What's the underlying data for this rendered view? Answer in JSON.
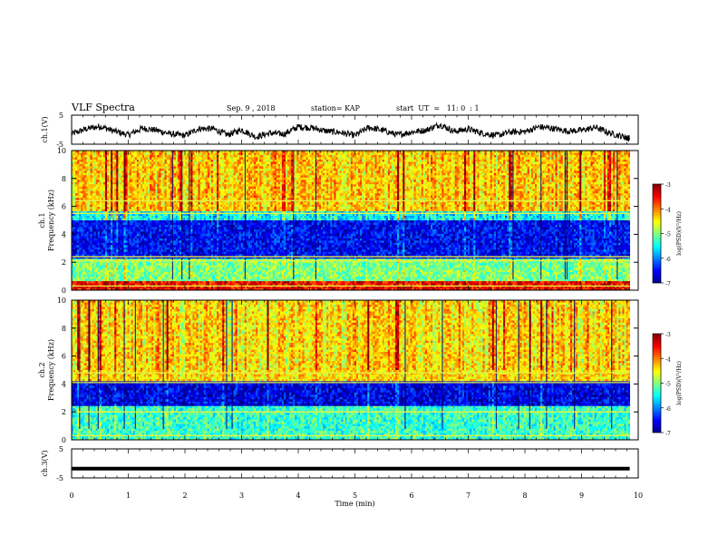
{
  "header": {
    "title": "VLF Spectra",
    "date": "Sep. 9 , 2018",
    "station": "station= KAP",
    "start": "start  UT  =   11: 0  : 1"
  },
  "chart_data": [
    {
      "type": "line",
      "panel": "ch1-waveform",
      "ylabel": "ch.1(V)",
      "xlim": [
        0,
        10
      ],
      "ylim": [
        -5,
        5
      ],
      "y_ticks": [
        "5",
        "-5"
      ],
      "x": [
        0,
        0.25,
        0.5,
        0.75,
        1,
        1.25,
        1.5,
        1.75,
        2,
        2.25,
        2.5,
        2.75,
        3,
        3.25,
        3.5,
        3.75,
        4,
        4.25,
        4.5,
        4.75,
        5,
        5.25,
        5.5,
        5.75,
        6,
        6.25,
        6.5,
        6.75,
        7,
        7.25,
        7.5,
        7.75,
        8,
        8.25,
        8.5,
        8.75,
        9,
        9.25,
        9.5,
        9.75,
        9.85
      ],
      "values": [
        -1.5,
        0.2,
        1.2,
        -0.5,
        -1.8,
        0.5,
        -0.2,
        -1.5,
        -2.0,
        0.4,
        0.3,
        -1.8,
        0.0,
        -2.5,
        -1.2,
        -1.5,
        1.0,
        0.6,
        -0.5,
        -1.0,
        -2.0,
        0.8,
        -0.3,
        -1.8,
        -0.8,
        -0.2,
        1.8,
        -0.6,
        0.2,
        -1.2,
        -2.0,
        -0.8,
        -0.7,
        1.0,
        0.4,
        -0.5,
        -0.2,
        0.8,
        -1.2,
        -2.5,
        -3.0
      ]
    },
    {
      "type": "heatmap",
      "panel": "ch1-spectrogram",
      "ylabel": "ch.1\nFrequency (kHz)",
      "xlim": [
        0,
        10
      ],
      "ylim": [
        0,
        10
      ],
      "y_ticks": [
        "0",
        "2",
        "4",
        "6",
        "8",
        "10"
      ],
      "colorbar": {
        "label": "log(PSD)(V²/Hz)",
        "range": [
          -7,
          -3
        ],
        "ticks": [
          "-3",
          "-4",
          "-5",
          "-6",
          "-7"
        ]
      },
      "bands": [
        {
          "f_range": [
            0,
            0.6
          ],
          "level": -3.5
        },
        {
          "f_range": [
            0.6,
            2.3
          ],
          "level": -5.0
        },
        {
          "f_range": [
            2.3,
            5.0
          ],
          "level": -6.5
        },
        {
          "f_range": [
            5.0,
            5.6
          ],
          "level": -5.5
        },
        {
          "f_range": [
            5.6,
            10
          ],
          "level": -4.3
        }
      ],
      "bright_lines_khz": [
        0.3,
        2.1,
        2.4,
        5.5,
        6.4
      ]
    },
    {
      "type": "heatmap",
      "panel": "ch2-spectrogram",
      "ylabel": "ch.2\nFrequency (kHz)",
      "xlim": [
        0,
        10
      ],
      "ylim": [
        0,
        10
      ],
      "y_ticks": [
        "0",
        "2",
        "4",
        "6",
        "8",
        "10"
      ],
      "colorbar": {
        "label": "log(PSD)(V²/Hz)",
        "range": [
          -7,
          -3
        ],
        "ticks": [
          "-3",
          "-4",
          "-5",
          "-6",
          "-7"
        ]
      },
      "bands": [
        {
          "f_range": [
            0,
            2.5
          ],
          "level": -5.3
        },
        {
          "f_range": [
            2.5,
            4.2
          ],
          "level": -6.6
        },
        {
          "f_range": [
            4.2,
            10
          ],
          "level": -4.4
        }
      ],
      "bright_lines_khz": [
        0.3,
        2.0,
        4.1,
        4.8
      ]
    },
    {
      "type": "line",
      "panel": "ch3-waveform",
      "ylabel": "ch.3(V)",
      "xlim": [
        0,
        10
      ],
      "ylim": [
        -5,
        5
      ],
      "y_ticks": [
        "5",
        "-5"
      ],
      "xlabel": "Time (min)",
      "x_ticks": [
        "0",
        "1",
        "2",
        "3",
        "4",
        "5",
        "6",
        "7",
        "8",
        "9",
        "10"
      ],
      "x": [
        0,
        9.85
      ],
      "values": [
        -1.8,
        -1.8
      ]
    }
  ]
}
